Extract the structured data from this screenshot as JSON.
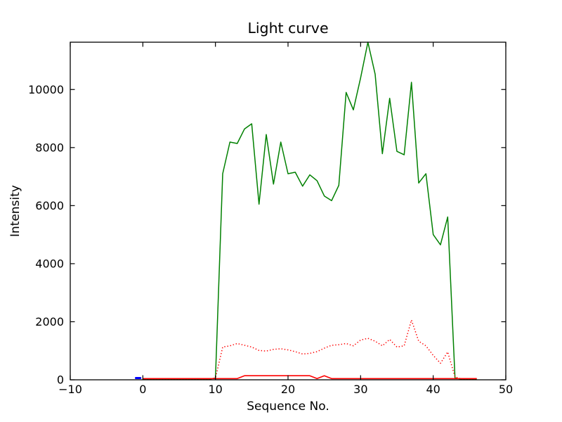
{
  "figure": {
    "background_color": "#ffffff",
    "spine_color": "#000000"
  },
  "chart_data": {
    "type": "line",
    "title": "Light curve",
    "xlabel": "Sequence No.",
    "ylabel": "Intensity",
    "xlim": [
      -10,
      50
    ],
    "ylim": [
      0,
      11630
    ],
    "x_ticks": [
      -10,
      0,
      10,
      20,
      30,
      40,
      50
    ],
    "y_ticks": [
      0,
      2000,
      4000,
      6000,
      8000,
      10000
    ],
    "grid": false,
    "legend": false,
    "tick_direction": "in",
    "x": [
      0,
      1,
      2,
      3,
      4,
      5,
      6,
      7,
      8,
      9,
      10,
      11,
      12,
      13,
      14,
      15,
      16,
      17,
      18,
      19,
      20,
      21,
      22,
      23,
      24,
      25,
      26,
      27,
      28,
      29,
      30,
      31,
      32,
      33,
      34,
      35,
      36,
      37,
      38,
      39,
      40,
      41,
      42,
      43,
      44,
      45,
      46
    ],
    "series": [
      {
        "name": "green-solid-curve",
        "color": "#008000",
        "style": "solid",
        "line_width": 1.5,
        "values": [
          20,
          20,
          20,
          20,
          20,
          20,
          20,
          20,
          20,
          20,
          60,
          7100,
          8190,
          8140,
          8640,
          8820,
          6050,
          8450,
          6740,
          8190,
          7100,
          7150,
          6670,
          7060,
          6860,
          6330,
          6170,
          6700,
          9900,
          9300,
          10400,
          11630,
          10530,
          7790,
          9700,
          7870,
          7750,
          10250,
          6780,
          7100,
          5000,
          4650,
          5610,
          60,
          20,
          20,
          20
        ]
      },
      {
        "name": "red-dotted-curve",
        "color": "#ff0000",
        "style": "dotted",
        "line_width": 1.5,
        "values": [
          20,
          20,
          20,
          20,
          20,
          20,
          20,
          20,
          20,
          20,
          60,
          1130,
          1170,
          1250,
          1190,
          1130,
          1010,
          990,
          1050,
          1070,
          1030,
          970,
          890,
          910,
          970,
          1090,
          1190,
          1210,
          1250,
          1170,
          1370,
          1430,
          1330,
          1170,
          1390,
          1130,
          1170,
          2060,
          1330,
          1170,
          840,
          570,
          960,
          100,
          20,
          20,
          20
        ]
      },
      {
        "name": "red-solid-curve",
        "color": "#ff0000",
        "style": "solid",
        "line_width": 1.6,
        "values": [
          40,
          40,
          40,
          40,
          40,
          40,
          40,
          40,
          40,
          40,
          40,
          40,
          40,
          40,
          140,
          140,
          140,
          140,
          140,
          140,
          140,
          140,
          140,
          140,
          40,
          140,
          40,
          40,
          40,
          40,
          40,
          40,
          40,
          40,
          40,
          40,
          40,
          40,
          40,
          40,
          40,
          40,
          40,
          40,
          40,
          40,
          40
        ]
      }
    ],
    "marker": {
      "name": "blue-marker",
      "color": "#0000ff",
      "line_width": 3,
      "x": [
        -0.95,
        -0.35
      ],
      "values": [
        60,
        60
      ]
    }
  }
}
